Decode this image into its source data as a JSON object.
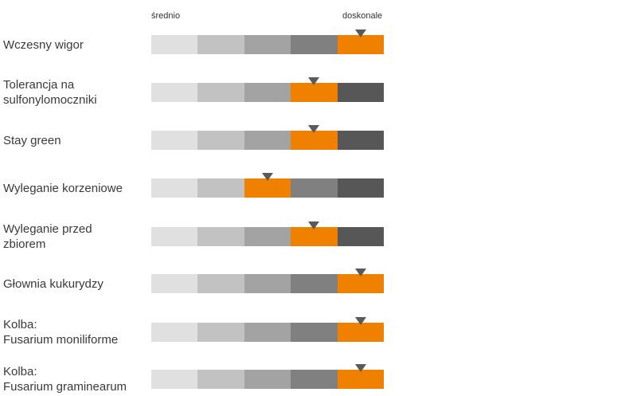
{
  "chart_data": {
    "type": "rating-scale",
    "scale": {
      "min_label": "średnio",
      "max_label": "doskonale",
      "levels": 5
    },
    "colors": {
      "levels": [
        "#e0e0e0",
        "#c2c2c2",
        "#a3a3a3",
        "#808080",
        "#575757"
      ],
      "highlight": "#f08000",
      "marker": "#5a5a5a"
    },
    "traits": [
      {
        "lines": [
          "Wczesny wigor"
        ],
        "rating": 5
      },
      {
        "lines": [
          "Tolerancja na",
          "sulfonylomoczniki"
        ],
        "rating": 4
      },
      {
        "lines": [
          "Stay green"
        ],
        "rating": 4
      },
      {
        "lines": [
          "Wyleganie korzeniowe"
        ],
        "rating": 3
      },
      {
        "lines": [
          "Wyleganie przed",
          "zbiorem"
        ],
        "rating": 4
      },
      {
        "lines": [
          "Głownia kukurydzy"
        ],
        "rating": 5
      },
      {
        "lines": [
          "Kolba:",
          "Fusarium moniliforme"
        ],
        "rating": 5
      },
      {
        "lines": [
          "Kolba:",
          "Fusarium graminearum"
        ],
        "rating": 5
      }
    ]
  }
}
